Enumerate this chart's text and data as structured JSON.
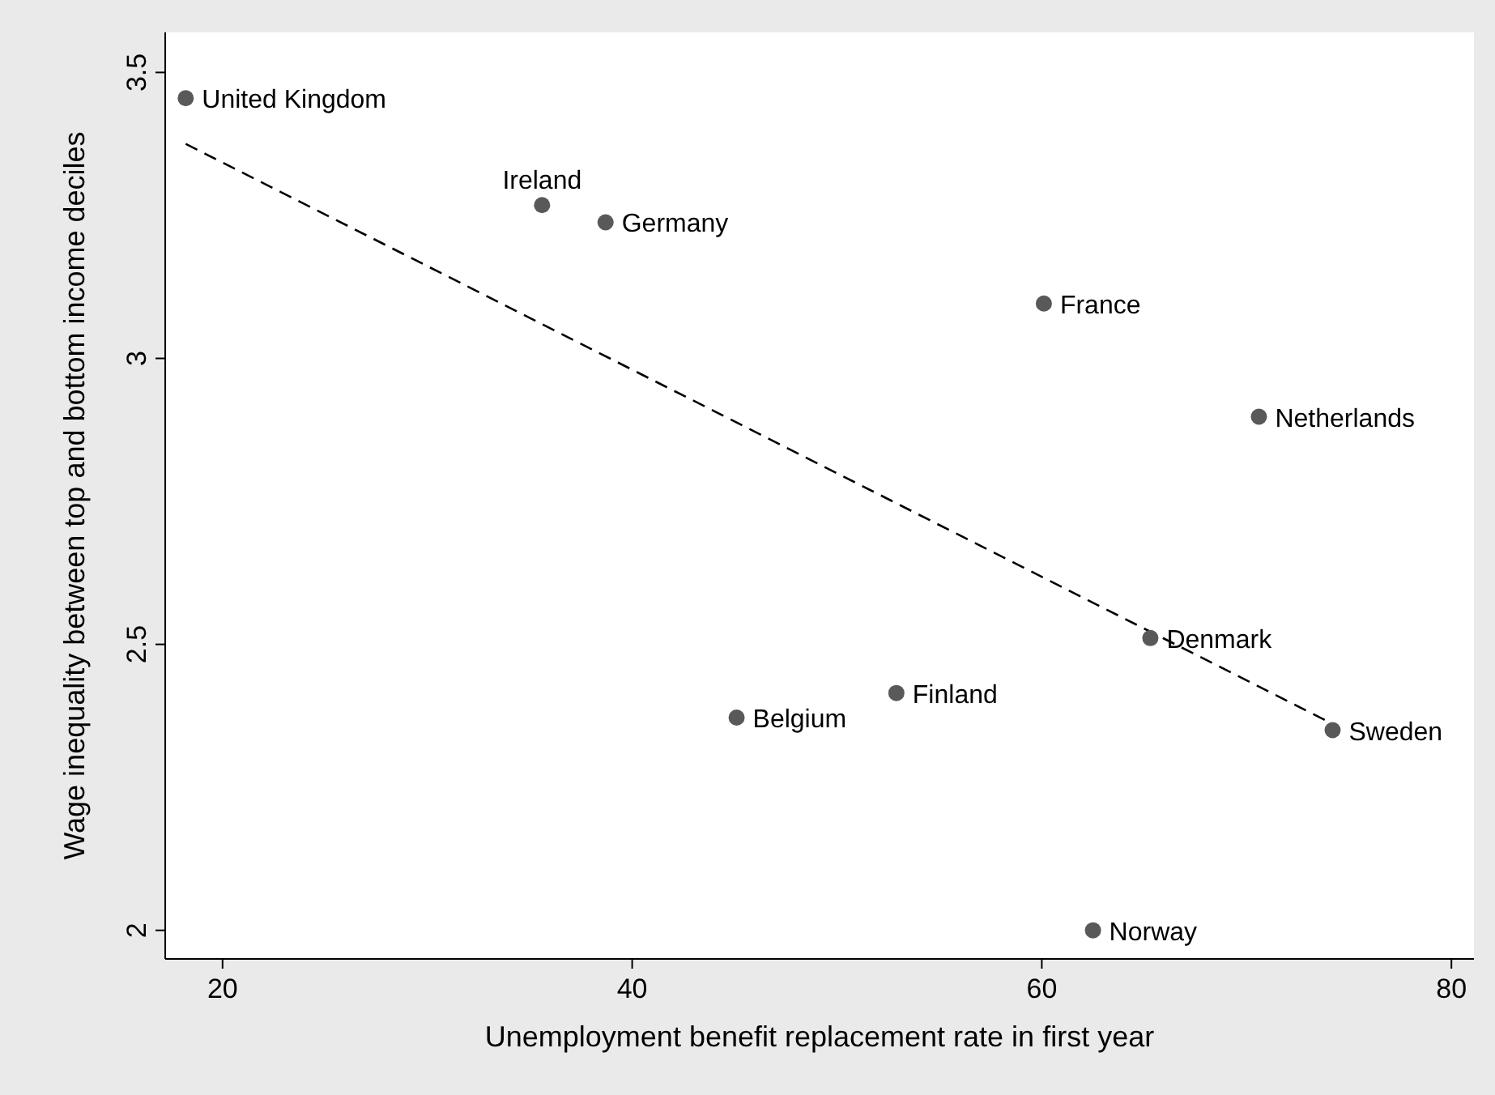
{
  "chart_data": {
    "type": "scatter",
    "xlabel": "Unemployment benefit replacement rate in first year",
    "ylabel": "Wage inequality between top and bottom income deciles",
    "xlim": [
      17.2,
      81.1
    ],
    "ylim": [
      1.95,
      3.57
    ],
    "xticks": [
      20,
      40,
      60,
      80
    ],
    "yticks": [
      2,
      2.5,
      3,
      3.5
    ],
    "grid": false,
    "series": [
      {
        "color": "#595959",
        "marker": "circle",
        "x": [
          18.2,
          35.6,
          38.7,
          60.1,
          70.6,
          65.3,
          74.2,
          52.9,
          45.1,
          62.5
        ],
        "values": [
          3.455,
          3.268,
          3.238,
          3.096,
          2.898,
          2.511,
          2.35,
          2.415,
          2.372,
          2.0
        ]
      },
      {
        "type": "line",
        "color": "#000000",
        "line_style": "dashed",
        "marker": "none",
        "x": [
          18.2,
          74.2
        ],
        "values": [
          3.375,
          2.361
        ]
      }
    ],
    "annotations": [
      {
        "text": "United Kingdom",
        "x": 18.2,
        "y": 3.455
      },
      {
        "text": "Ireland",
        "x": 35.6,
        "y": 3.268
      },
      {
        "text": "Germany",
        "x": 38.7,
        "y": 3.238
      },
      {
        "text": "France",
        "x": 60.1,
        "y": 3.096
      },
      {
        "text": "Netherlands",
        "x": 70.6,
        "y": 2.898
      },
      {
        "text": "Denmark",
        "x": 65.3,
        "y": 2.511
      },
      {
        "text": "Sweden",
        "x": 74.2,
        "y": 2.35
      },
      {
        "text": "Finland",
        "x": 52.9,
        "y": 2.415
      },
      {
        "text": "Belgium",
        "x": 45.1,
        "y": 2.372
      },
      {
        "text": "Norway",
        "x": 62.5,
        "y": 2.0
      }
    ]
  }
}
